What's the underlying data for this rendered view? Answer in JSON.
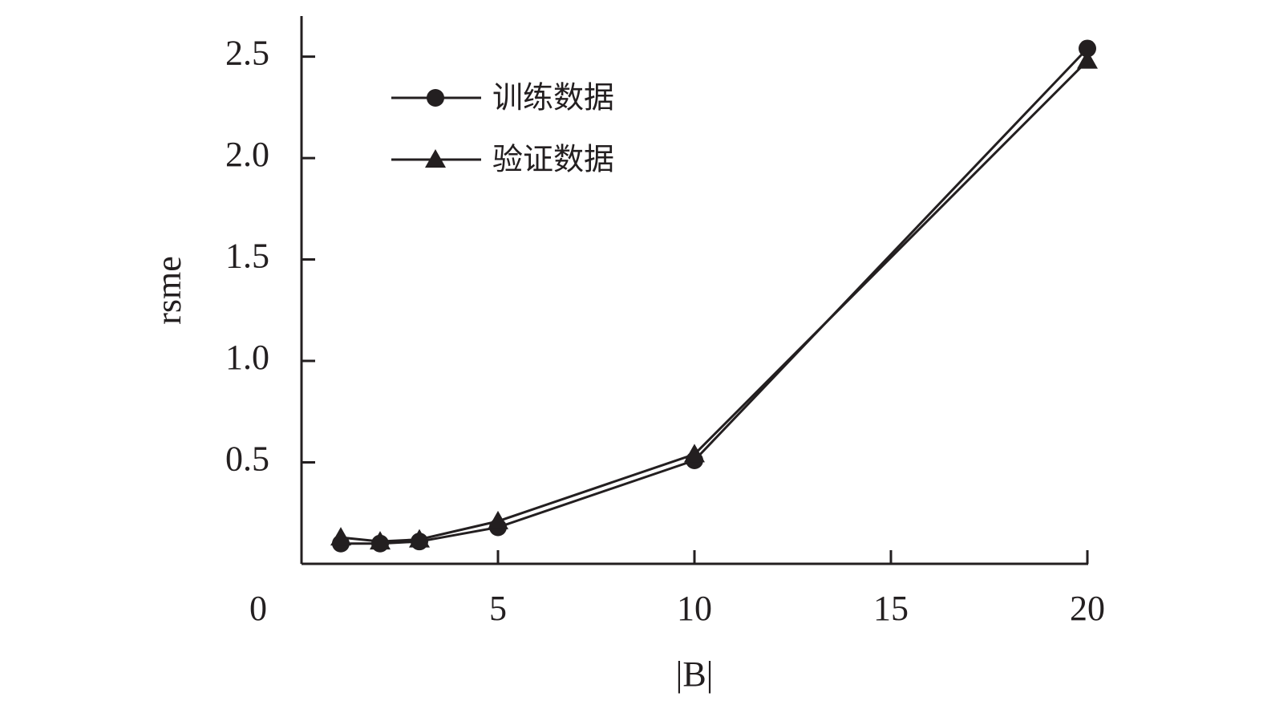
{
  "chart_data": {
    "type": "line",
    "x_label": "|B|",
    "y_label": "rsme",
    "x": [
      1,
      2,
      3,
      5,
      10,
      20
    ],
    "series": [
      {
        "name": "训练数据",
        "color": "#231f20",
        "marker": "circle",
        "values": [
          0.1,
          0.1,
          0.11,
          0.18,
          0.51,
          2.54
        ]
      },
      {
        "name": "验证数据",
        "color": "#231f20",
        "marker": "triangle",
        "values": [
          0.13,
          0.11,
          0.12,
          0.21,
          0.54,
          2.48
        ]
      }
    ],
    "xlim": [
      0,
      20
    ],
    "xticks": [
      0,
      5,
      10,
      15,
      20
    ],
    "ylim": [
      0,
      2.7
    ],
    "yticks": [
      {
        "value": 0.5,
        "label": "0.5"
      },
      {
        "value": 1.0,
        "label": "1.0"
      },
      {
        "value": 1.5,
        "label": "1.5"
      },
      {
        "value": 2.0,
        "label": "2.0"
      },
      {
        "value": 2.5,
        "label": "2.5"
      }
    ],
    "grid": false,
    "legend": "upper left"
  }
}
